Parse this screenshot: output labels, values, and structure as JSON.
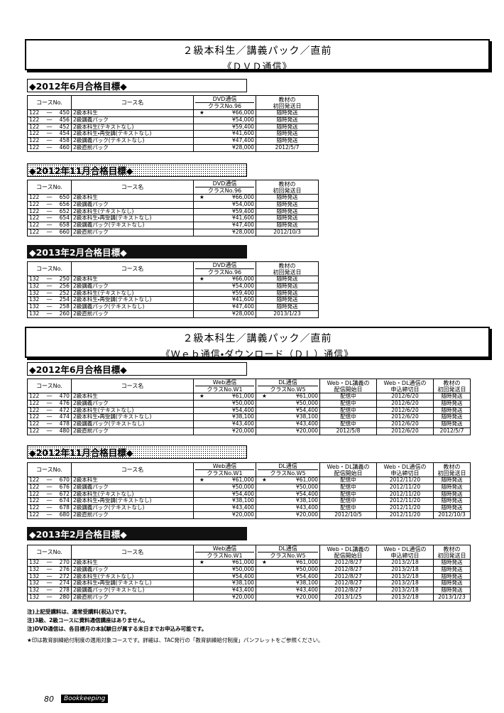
{
  "sections": [
    {
      "title": "２級本科生／講義パック／直前",
      "subtitle": "《ＤＶＤ通信》",
      "columns": [
        [
          "コースNo."
        ],
        [
          "コース名"
        ],
        [
          "DVD通信",
          "クラスNo.96"
        ],
        [
          "教材の",
          "初回発送日"
        ]
      ],
      "groups": [
        {
          "heading": "◆2012年6月合格目標◆",
          "rows": [
            {
              "code": "122 ― 450",
              "name": "2級本科生",
              "prices": [
                {
                  "star": "★",
                  "price": "¥66,000"
                }
              ],
              "dates": [
                "随時発送"
              ]
            },
            {
              "code": "122 ― 456",
              "name": "2級講義パック",
              "prices": [
                {
                  "price": "¥54,000"
                }
              ],
              "dates": [
                "随時発送"
              ]
            },
            {
              "code": "122 ― 452",
              "name": "2級本科生(テキストなし)",
              "prices": [
                {
                  "price": "¥59,400"
                }
              ],
              "dates": [
                "随時発送"
              ]
            },
            {
              "code": "122 ― 454",
              "name": "2級本科生・再受講(テキストなし)",
              "prices": [
                {
                  "price": "¥41,600"
                }
              ],
              "dates": [
                "随時発送"
              ]
            },
            {
              "code": "122 ― 458",
              "name": "2級講義パック(テキストなし)",
              "prices": [
                {
                  "price": "¥47,400"
                }
              ],
              "dates": [
                "随時発送"
              ]
            },
            {
              "code": "122 ― 460",
              "name": "2級直前パック",
              "prices": [
                {
                  "price": "¥28,000"
                }
              ],
              "dates": [
                "2012/5/7"
              ]
            }
          ]
        },
        {
          "heading": "◆2012年11月合格目標◆",
          "rows": [
            {
              "code": "122 ― 650",
              "name": "2級本科生",
              "prices": [
                {
                  "star": "★",
                  "price": "¥66,000"
                }
              ],
              "dates": [
                "随時発送"
              ]
            },
            {
              "code": "122 ― 656",
              "name": "2級講義パック",
              "prices": [
                {
                  "price": "¥54,000"
                }
              ],
              "dates": [
                "随時発送"
              ]
            },
            {
              "code": "122 ― 652",
              "name": "2級本科生(テキストなし)",
              "prices": [
                {
                  "price": "¥59,400"
                }
              ],
              "dates": [
                "随時発送"
              ]
            },
            {
              "code": "122 ― 654",
              "name": "2級本科生・再受講(テキストなし)",
              "prices": [
                {
                  "price": "¥41,600"
                }
              ],
              "dates": [
                "随時発送"
              ]
            },
            {
              "code": "122 ― 658",
              "name": "2級講義パック(テキストなし)",
              "prices": [
                {
                  "price": "¥47,400"
                }
              ],
              "dates": [
                "随時発送"
              ]
            },
            {
              "code": "122 ― 660",
              "name": "2級直前パック",
              "prices": [
                {
                  "price": "¥28,000"
                }
              ],
              "dates": [
                "2012/10/3"
              ]
            }
          ]
        },
        {
          "heading": "◆2013年2月合格目標◆",
          "rows": [
            {
              "code": "132 ― 250",
              "name": "2級本科生",
              "prices": [
                {
                  "star": "★",
                  "price": "¥66,000"
                }
              ],
              "dates": [
                "随時発送"
              ]
            },
            {
              "code": "132 ― 256",
              "name": "2級講義パック",
              "prices": [
                {
                  "price": "¥54,000"
                }
              ],
              "dates": [
                "随時発送"
              ]
            },
            {
              "code": "132 ― 252",
              "name": "2級本科生(テキストなし)",
              "prices": [
                {
                  "price": "¥59,400"
                }
              ],
              "dates": [
                "随時発送"
              ]
            },
            {
              "code": "132 ― 254",
              "name": "2級本科生・再受講(テキストなし)",
              "prices": [
                {
                  "price": "¥41,600"
                }
              ],
              "dates": [
                "随時発送"
              ]
            },
            {
              "code": "132 ― 258",
              "name": "2級講義パック(テキストなし)",
              "prices": [
                {
                  "price": "¥47,400"
                }
              ],
              "dates": [
                "随時発送"
              ]
            },
            {
              "code": "132 ― 260",
              "name": "2級直前パック",
              "prices": [
                {
                  "price": "¥28,000"
                }
              ],
              "dates": [
                "2013/1/23"
              ]
            }
          ]
        }
      ]
    },
    {
      "title": "２級本科生／講義パック／直前",
      "subtitle": "《Ｗｅｂ通信・ダウンロード（ＤＬ）通信》",
      "columns": [
        [
          "コースNo."
        ],
        [
          "コース名"
        ],
        [
          "Web通信",
          "クラスNo.W1"
        ],
        [
          "DL通信",
          "クラスNo.W5"
        ],
        [
          "Web・DL講義の",
          "配信開始日"
        ],
        [
          "Web・DL通信の",
          "申込締切日"
        ],
        [
          "教材の",
          "初回発送日"
        ]
      ],
      "groups": [
        {
          "heading": "◆2012年6月合格目標◆",
          "rows": [
            {
              "code": "122 ― 470",
              "name": "2級本科生",
              "prices": [
                {
                  "star": "★",
                  "price": "¥61,000"
                },
                {
                  "star": "★",
                  "price": "¥61,000"
                }
              ],
              "dates": [
                "配信中",
                "2012/6/20",
                "随時発送"
              ]
            },
            {
              "code": "122 ― 476",
              "name": "2級講義パック",
              "prices": [
                {
                  "price": "¥50,000"
                },
                {
                  "price": "¥50,000"
                }
              ],
              "dates": [
                "配信中",
                "2012/6/20",
                "随時発送"
              ]
            },
            {
              "code": "122 ― 472",
              "name": "2級本科生(テキストなし)",
              "prices": [
                {
                  "price": "¥54,400"
                },
                {
                  "price": "¥54,400"
                }
              ],
              "dates": [
                "配信中",
                "2012/6/20",
                "随時発送"
              ]
            },
            {
              "code": "122 ― 474",
              "name": "2級本科生・再受講(テキストなし)",
              "prices": [
                {
                  "price": "¥38,100"
                },
                {
                  "price": "¥38,100"
                }
              ],
              "dates": [
                "配信中",
                "2012/6/20",
                "随時発送"
              ]
            },
            {
              "code": "122 ― 478",
              "name": "2級講義パック(テキストなし)",
              "prices": [
                {
                  "price": "¥43,400"
                },
                {
                  "price": "¥43,400"
                }
              ],
              "dates": [
                "配信中",
                "2012/6/20",
                "随時発送"
              ]
            },
            {
              "code": "122 ― 480",
              "name": "2級直前パック",
              "prices": [
                {
                  "price": "¥20,000"
                },
                {
                  "price": "¥20,000"
                }
              ],
              "dates": [
                "2012/5/8",
                "2012/6/20",
                "2012/5/7"
              ]
            }
          ]
        },
        {
          "heading": "◆2012年11月合格目標◆",
          "rows": [
            {
              "code": "122 ― 670",
              "name": "2級本科生",
              "prices": [
                {
                  "star": "★",
                  "price": "¥61,000"
                },
                {
                  "star": "★",
                  "price": "¥61,000"
                }
              ],
              "dates": [
                "配信中",
                "2012/11/20",
                "随時発送"
              ]
            },
            {
              "code": "122 ― 676",
              "name": "2級講義パック",
              "prices": [
                {
                  "price": "¥50,000"
                },
                {
                  "price": "¥50,000"
                }
              ],
              "dates": [
                "配信中",
                "2012/11/20",
                "随時発送"
              ]
            },
            {
              "code": "122 ― 672",
              "name": "2級本科生(テキストなし)",
              "prices": [
                {
                  "price": "¥54,400"
                },
                {
                  "price": "¥54,400"
                }
              ],
              "dates": [
                "配信中",
                "2012/11/20",
                "随時発送"
              ]
            },
            {
              "code": "122 ― 674",
              "name": "2級本科生・再受講(テキストなし)",
              "prices": [
                {
                  "price": "¥38,100"
                },
                {
                  "price": "¥38,100"
                }
              ],
              "dates": [
                "配信中",
                "2012/11/20",
                "随時発送"
              ]
            },
            {
              "code": "122 ― 678",
              "name": "2級講義パック(テキストなし)",
              "prices": [
                {
                  "price": "¥43,400"
                },
                {
                  "price": "¥43,400"
                }
              ],
              "dates": [
                "配信中",
                "2012/11/20",
                "随時発送"
              ]
            },
            {
              "code": "122 ― 680",
              "name": "2級直前パック",
              "prices": [
                {
                  "price": "¥20,000"
                },
                {
                  "price": "¥20,000"
                }
              ],
              "dates": [
                "2012/10/5",
                "2012/11/20",
                "2012/10/3"
              ]
            }
          ]
        },
        {
          "heading": "◆2013年2月合格目標◆",
          "rows": [
            {
              "code": "132 ― 270",
              "name": "2級本科生",
              "prices": [
                {
                  "star": "★",
                  "price": "¥61,000"
                },
                {
                  "star": "★",
                  "price": "¥61,000"
                }
              ],
              "dates": [
                "2012/8/27",
                "2013/2/18",
                "随時発送"
              ]
            },
            {
              "code": "132 ― 276",
              "name": "2級講義パック",
              "prices": [
                {
                  "price": "¥50,000"
                },
                {
                  "price": "¥50,000"
                }
              ],
              "dates": [
                "2012/8/27",
                "2013/2/18",
                "随時発送"
              ]
            },
            {
              "code": "132 ― 272",
              "name": "2級本科生(テキストなし)",
              "prices": [
                {
                  "price": "¥54,400"
                },
                {
                  "price": "¥54,400"
                }
              ],
              "dates": [
                "2012/8/27",
                "2013/2/18",
                "随時発送"
              ]
            },
            {
              "code": "132 ― 274",
              "name": "2級本科生・再受講(テキストなし)",
              "prices": [
                {
                  "price": "¥38,100"
                },
                {
                  "price": "¥38,100"
                }
              ],
              "dates": [
                "2012/8/27",
                "2013/2/18",
                "随時発送"
              ]
            },
            {
              "code": "132 ― 278",
              "name": "2級講義パック(テキストなし)",
              "prices": [
                {
                  "price": "¥43,400"
                },
                {
                  "price": "¥43,400"
                }
              ],
              "dates": [
                "2012/8/27",
                "2013/2/18",
                "随時発送"
              ]
            },
            {
              "code": "132 ― 280",
              "name": "2級直前パック",
              "prices": [
                {
                  "price": "¥20,000"
                },
                {
                  "price": "¥20,000"
                }
              ],
              "dates": [
                "2013/1/25",
                "2013/2/18",
                "2013/1/23"
              ]
            }
          ]
        }
      ]
    }
  ],
  "notes": [
    "注)上記受講料は、通常受講料(税込)です。",
    "注)3級、2級コースに資料通信講座はありません。",
    "注)DVD通信は、各目標月の本試験日が属する末日までお申込み可能です。"
  ],
  "star_note": "★印は教育訓練給付制度の適用対象コースです。詳細は、TAC発行の「教育訓練給付制度」パンフレットをご参照ください。",
  "footer": {
    "page": "80",
    "brand": "Bookkeeping"
  }
}
